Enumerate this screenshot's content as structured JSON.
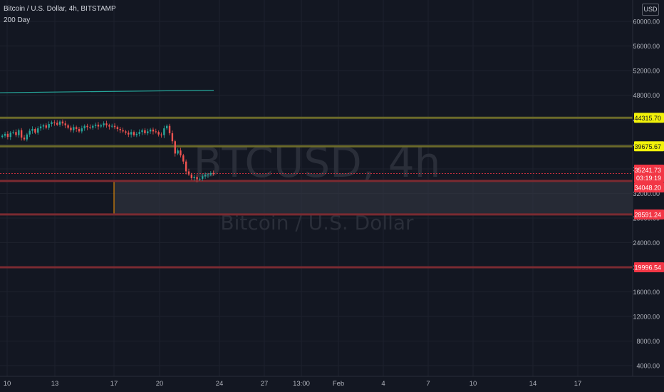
{
  "header": {
    "symbol_line": "Bitcoin / U.S. Dollar, 4h, BITSTAMP",
    "indicator": "200 Day",
    "currency": "USD"
  },
  "watermark": {
    "ticker": "BTCUSD, 4h",
    "name": "Bitcoin / U.S. Dollar"
  },
  "chart_data": {
    "type": "candlestick",
    "y_axis": {
      "ylim": [
        2800,
        61500
      ],
      "ticks": [
        4000,
        8000,
        12000,
        16000,
        20000,
        24000,
        28000,
        32000,
        36000,
        40000,
        44000,
        48000,
        52000,
        56000,
        60000
      ],
      "tick_labels": [
        "4000.00",
        "8000.00",
        "12000.00",
        "16000.00",
        "20000.00",
        "24000.00",
        "28000.00",
        "32000.00",
        "36000.00",
        "40000.00",
        "44000.00",
        "48000.00",
        "52000.00",
        "56000.00",
        "60000.00"
      ]
    },
    "x_axis": {
      "labels": [
        "10",
        "13",
        "17",
        "20",
        "24",
        "27",
        "13:00",
        "Feb",
        "4",
        "7",
        "10",
        "14",
        "17"
      ]
    },
    "candles_close": [
      41400,
      41700,
      41200,
      41900,
      42000,
      41500,
      42300,
      41100,
      40800,
      41600,
      42200,
      42500,
      41900,
      42600,
      42900,
      43100,
      42700,
      43300,
      43600,
      43500,
      43200,
      43700,
      43400,
      43100,
      42700,
      42300,
      42800,
      42500,
      42100,
      42600,
      43000,
      42800,
      42700,
      43000,
      43200,
      42900,
      43100,
      43400,
      43100,
      42900,
      43000,
      42800,
      42500,
      42300,
      42100,
      41900,
      41600,
      42000,
      41500,
      41700,
      42000,
      42300,
      41800,
      42100,
      42400,
      42100,
      42000,
      41600,
      41500,
      42600,
      43000,
      41800,
      40500,
      38500,
      39000,
      38200,
      37200,
      35600,
      35100,
      34500,
      34700,
      34300,
      34400,
      34800,
      35000,
      35100,
      35300,
      35241.73
    ],
    "moving_average": {
      "name": "200 Day",
      "color": "#26a69a",
      "start": 48400,
      "end": 48800
    },
    "levels": [
      {
        "label": "44315.70",
        "value": 44315.7,
        "color": "#f2f20a",
        "text_color": "#131722"
      },
      {
        "label": "39675.67",
        "value": 39675.67,
        "color": "#f2f20a",
        "text_color": "#131722"
      },
      {
        "label": "34048.20",
        "value": 34048.2,
        "color": "#f23645",
        "text_color": "#ffffff"
      },
      {
        "label": "28591.24",
        "value": 28591.24,
        "color": "#f23645",
        "text_color": "#ffffff"
      },
      {
        "label": "19996.54",
        "value": 19996.54,
        "color": "#f23645",
        "text_color": "#ffffff"
      }
    ],
    "last_price": {
      "label": "35241.73",
      "value": 35241.73,
      "countdown": "03:19:19",
      "color": "#f23645"
    },
    "zone": {
      "top": 34048.2,
      "bottom": 28591.24,
      "border_color": "#ff9800",
      "fill": "#363a45"
    }
  }
}
